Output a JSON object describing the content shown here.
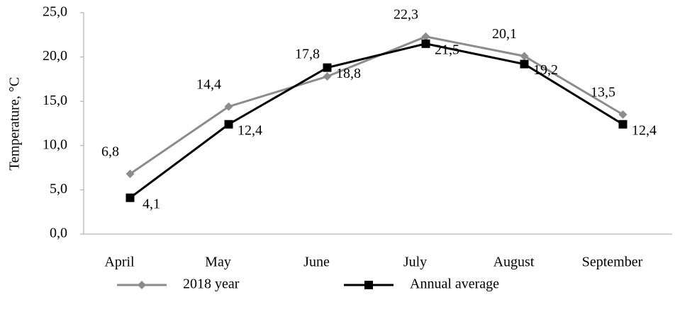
{
  "chart_data": {
    "type": "line",
    "y_label": "Temperature, °C",
    "categories": [
      "April",
      "May",
      "June",
      "July",
      "August",
      "September"
    ],
    "series": [
      {
        "name": "2018 year",
        "color": "#8c8c8c",
        "values": [
          6.8,
          14.4,
          17.8,
          22.3,
          20.1,
          13.5
        ],
        "value_labels": [
          "6,8",
          "14,4",
          "17,8",
          "22,3",
          "20,1",
          "13,5"
        ]
      },
      {
        "name": "Annual average",
        "color": "#000000",
        "values": [
          4.1,
          12.4,
          18.8,
          21.5,
          19.2,
          12.4
        ],
        "value_labels": [
          "4,1",
          "12,4",
          "18,8",
          "21,5",
          "19,2",
          "12,4"
        ]
      }
    ],
    "ylim": [
      0,
      25
    ],
    "yticks": [
      {
        "value": 0,
        "label": "0,0"
      },
      {
        "value": 5,
        "label": "5,0"
      },
      {
        "value": 10,
        "label": "10,0"
      },
      {
        "value": 15,
        "label": "15,0"
      },
      {
        "value": 20,
        "label": "20,0"
      },
      {
        "value": 25,
        "label": "25,0"
      }
    ],
    "grid": false,
    "legend": "bottom"
  }
}
